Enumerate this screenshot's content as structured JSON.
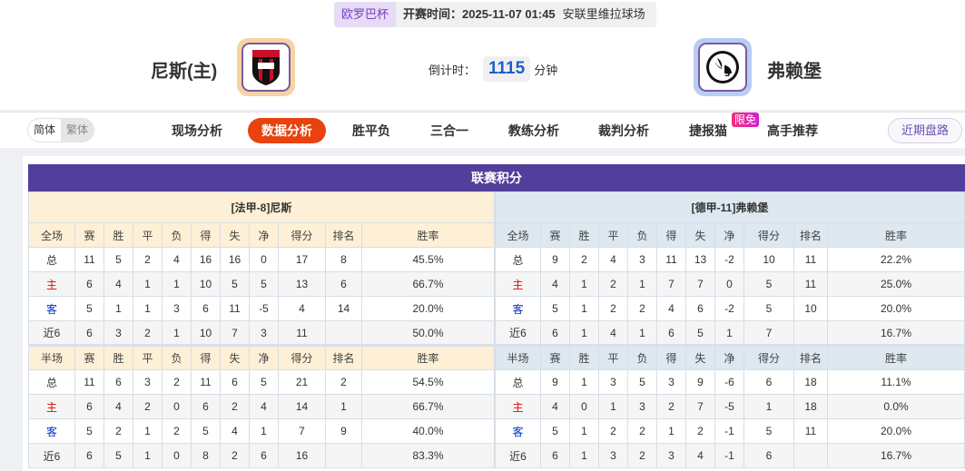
{
  "match": {
    "league": "欧罗巴杯",
    "kickoff": "开赛时间：2025-11-07 01:45",
    "venue": "安联里维拉球场",
    "home_team": "尼斯(主)",
    "away_team": "弗赖堡",
    "countdown_label": "倒计时：",
    "countdown_value": "1115",
    "countdown_unit": "分钟",
    "home_logo_color": "#f6d3a4",
    "away_logo_color": "#b8cdf2"
  },
  "nav": {
    "lang": [
      "简体",
      "繁体"
    ],
    "items": [
      "现场分析",
      "数据分析",
      "胜平负",
      "三合一",
      "教练分析",
      "裁判分析",
      "捷报猫",
      "高手推荐"
    ],
    "active": "数据分析",
    "badge": "限免",
    "recent": "近期盘路",
    "accent": "#e8420f"
  },
  "standings": {
    "title": "联赛积分",
    "columns": [
      "赛",
      "胜",
      "平",
      "负",
      "得",
      "失",
      "净",
      "得分",
      "排名",
      "胜率"
    ],
    "home": {
      "team": "[法甲-8]尼斯",
      "full_label": "全场",
      "half_label": "半场",
      "full": [
        [
          "总",
          "11",
          "5",
          "2",
          "4",
          "16",
          "16",
          "0",
          "17",
          "8",
          "45.5%"
        ],
        [
          "主",
          "6",
          "4",
          "1",
          "1",
          "10",
          "5",
          "5",
          "13",
          "6",
          "66.7%"
        ],
        [
          "客",
          "5",
          "1",
          "1",
          "3",
          "6",
          "11",
          "-5",
          "4",
          "14",
          "20.0%"
        ],
        [
          "近6",
          "6",
          "3",
          "2",
          "1",
          "10",
          "7",
          "3",
          "11",
          "",
          "50.0%"
        ]
      ],
      "half": [
        [
          "总",
          "11",
          "6",
          "3",
          "2",
          "11",
          "6",
          "5",
          "21",
          "2",
          "54.5%"
        ],
        [
          "主",
          "6",
          "4",
          "2",
          "0",
          "6",
          "2",
          "4",
          "14",
          "1",
          "66.7%"
        ],
        [
          "客",
          "5",
          "2",
          "1",
          "2",
          "5",
          "4",
          "1",
          "7",
          "9",
          "40.0%"
        ],
        [
          "近6",
          "6",
          "5",
          "1",
          "0",
          "8",
          "2",
          "6",
          "16",
          "",
          "83.3%"
        ]
      ]
    },
    "away": {
      "team": "[德甲-11]弗赖堡",
      "full_label": "全场",
      "half_label": "半场",
      "full": [
        [
          "总",
          "9",
          "2",
          "4",
          "3",
          "11",
          "13",
          "-2",
          "10",
          "11",
          "22.2%"
        ],
        [
          "主",
          "4",
          "1",
          "2",
          "1",
          "7",
          "7",
          "0",
          "5",
          "11",
          "25.0%"
        ],
        [
          "客",
          "5",
          "1",
          "2",
          "2",
          "4",
          "6",
          "-2",
          "5",
          "10",
          "20.0%"
        ],
        [
          "近6",
          "6",
          "1",
          "4",
          "1",
          "6",
          "5",
          "1",
          "7",
          "",
          "16.7%"
        ]
      ],
      "half": [
        [
          "总",
          "9",
          "1",
          "3",
          "5",
          "3",
          "9",
          "-6",
          "6",
          "18",
          "11.1%"
        ],
        [
          "主",
          "4",
          "0",
          "1",
          "3",
          "2",
          "7",
          "-5",
          "1",
          "18",
          "0.0%"
        ],
        [
          "客",
          "5",
          "1",
          "2",
          "2",
          "1",
          "2",
          "-1",
          "5",
          "11",
          "20.0%"
        ],
        [
          "近6",
          "6",
          "1",
          "3",
          "2",
          "3",
          "4",
          "-1",
          "6",
          "",
          "16.7%"
        ]
      ]
    }
  }
}
